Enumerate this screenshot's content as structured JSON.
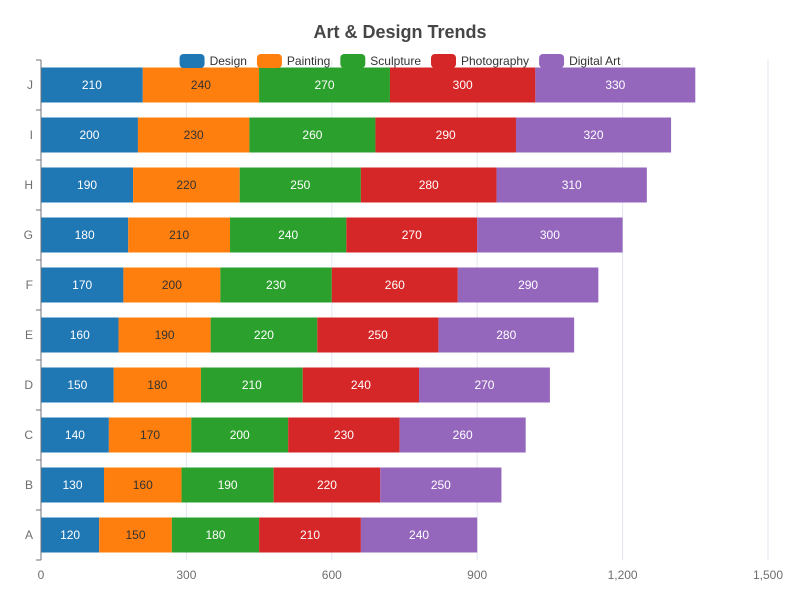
{
  "chart_data": {
    "type": "bar",
    "orientation": "horizontal",
    "stacked": true,
    "title": "Art & Design Trends",
    "categories": [
      "A",
      "B",
      "C",
      "D",
      "E",
      "F",
      "G",
      "H",
      "I",
      "J"
    ],
    "series": [
      {
        "name": "Design",
        "color": "#1f77b4",
        "label_color": "#ffffff",
        "values": [
          120,
          130,
          140,
          150,
          160,
          170,
          180,
          190,
          200,
          210
        ]
      },
      {
        "name": "Painting",
        "color": "#ff7f0e",
        "label_color": "#333333",
        "values": [
          150,
          160,
          170,
          180,
          190,
          200,
          210,
          220,
          230,
          240
        ]
      },
      {
        "name": "Sculpture",
        "color": "#2ca02c",
        "label_color": "#ffffff",
        "values": [
          180,
          190,
          200,
          210,
          220,
          230,
          240,
          250,
          260,
          270
        ]
      },
      {
        "name": "Photography",
        "color": "#d62728",
        "label_color": "#ffffff",
        "values": [
          210,
          220,
          230,
          240,
          250,
          260,
          270,
          280,
          290,
          300
        ]
      },
      {
        "name": "Digital Art",
        "color": "#9467bd",
        "label_color": "#ffffff",
        "values": [
          240,
          250,
          260,
          270,
          280,
          290,
          300,
          310,
          320,
          330
        ]
      }
    ],
    "xlim": [
      0,
      1500
    ],
    "x_ticks": [
      0,
      300,
      600,
      900,
      1200,
      1500
    ],
    "x_tick_labels": [
      "0",
      "300",
      "600",
      "900",
      "1,200",
      "1,500"
    ],
    "grid": true,
    "legend_position": "top"
  }
}
